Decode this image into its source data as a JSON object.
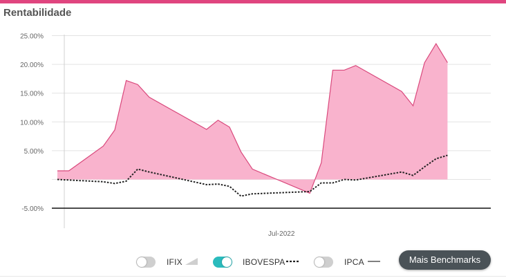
{
  "header": {
    "title": "Rentabilidade"
  },
  "colors": {
    "accent": "#e0457f",
    "area_fill": "#f9b3cd",
    "area_line": "#d9487c",
    "benchmark_line": "#222222",
    "toggle_on": "#2bbbbd",
    "toggle_off": "#cfcfcf",
    "button_bg": "#4a5257"
  },
  "chart_data": {
    "type": "area",
    "title": "",
    "xlabel": "",
    "ylabel": "",
    "ylim": [
      -6,
      26
    ],
    "y_ticks": [
      25,
      20,
      15,
      10,
      5,
      -5
    ],
    "y_tick_labels": [
      "25.00%",
      "20.00%",
      "15.00%",
      "10.00%",
      "5.00%",
      "-5.00%"
    ],
    "x_tick_labels": [
      {
        "label": "Jul-2022",
        "index": 17
      }
    ],
    "grid": true,
    "series": [
      {
        "values": [
          1.5,
          1.5,
          5.8,
          8.6,
          17.2,
          16.5,
          14.3,
          8.7,
          10.3,
          9.1,
          4.8,
          1.8,
          -2.4,
          2.9,
          19.0,
          19.0,
          19.8,
          15.3,
          12.8,
          20.3,
          23.6,
          20.3
        ],
        "t": [
          0,
          1,
          4,
          5,
          6,
          7,
          8,
          13,
          14,
          15,
          16,
          17,
          22,
          23,
          24,
          25,
          26,
          30,
          31,
          32,
          33,
          34
        ],
        "style": "area"
      },
      {
        "name": "IBOVESPA",
        "values": [
          0,
          -0.1,
          -0.4,
          -0.7,
          -0.3,
          1.8,
          1.3,
          -0.9,
          -0.8,
          -1.2,
          -2.9,
          -2.5,
          -2.1,
          -0.6,
          -0.6,
          0,
          -0.1,
          1.3,
          0.7,
          2.2,
          3.6,
          4.2
        ],
        "t": [
          0,
          1,
          4,
          5,
          6,
          7,
          8,
          13,
          14,
          15,
          16,
          17,
          22,
          23,
          24,
          25,
          26,
          30,
          31,
          32,
          33,
          34
        ],
        "style": "dotted"
      }
    ],
    "benchmark_level": -5
  },
  "legend": {
    "items": [
      {
        "label": "IFIX",
        "enabled": false,
        "symbol": "area-icon"
      },
      {
        "label": "IBOVESPA",
        "enabled": true,
        "symbol": "dotted-line-icon"
      },
      {
        "label": "IPCA",
        "enabled": false,
        "symbol": "solid-line-icon"
      }
    ],
    "more_button": "Mais Benchmarks"
  }
}
